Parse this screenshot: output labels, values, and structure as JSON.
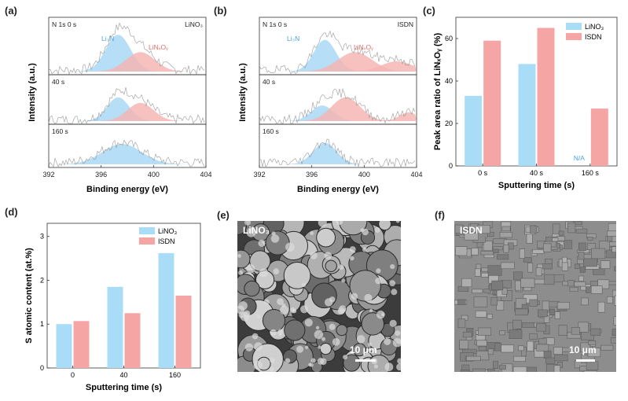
{
  "panels": {
    "a": {
      "label": "(a)",
      "corner_text": "LiNO₃",
      "subplots": [
        {
          "text": "N 1s    0 s",
          "peak1_label": "Li₃N",
          "peak2_label": "LiNₓOᵧ"
        },
        {
          "text": "40 s"
        },
        {
          "text": "160 s"
        }
      ],
      "xticks": [
        "392",
        "396",
        "400",
        "404"
      ],
      "xlabel": "Binding energy (eV)",
      "ylabel": "Intensity (a.u.)"
    },
    "b": {
      "label": "(b)",
      "corner_text": "ISDN",
      "subplots": [
        {
          "text": "N 1s    0 s",
          "peak1_label": "Li₃N",
          "peak2_label": "LiNₓOᵧ"
        },
        {
          "text": "40 s"
        },
        {
          "text": "160 s"
        }
      ],
      "xticks": [
        "392",
        "396",
        "400",
        "404"
      ],
      "xlabel": "Binding energy (eV)",
      "ylabel": "Intensity (a.u.)"
    },
    "c": {
      "label": "(c)",
      "na_text": "N/A"
    },
    "d": {
      "label": "(d)"
    },
    "e": {
      "label": "(e)",
      "overlay_text": "LiNO₃",
      "scale_text": "10 μm"
    },
    "f": {
      "label": "(f)",
      "overlay_text": "ISDN",
      "scale_text": "10 μm"
    }
  },
  "colors": {
    "blue_fill": "#a9d8f5",
    "blue_bar": "#a9dcf7",
    "red_fill": "#f5b6b3",
    "red_bar": "#f4a5a4",
    "blue_text": "#4aa3e0",
    "red_text": "#e0706b"
  },
  "chart_data": [
    {
      "type": "bar",
      "panel": "c",
      "categories": [
        "0 s",
        "40 s",
        "160 s"
      ],
      "series": [
        {
          "name": "LiNO₃",
          "values": [
            33,
            48,
            null
          ]
        },
        {
          "name": "ISDN",
          "values": [
            59,
            65,
            27
          ]
        }
      ],
      "xlabel": "Sputtering time (s)",
      "ylabel": "Peak area ratio of LiNₓOᵧ (%)",
      "ylim": [
        0,
        70
      ],
      "yticks": [
        0,
        20,
        40,
        60
      ],
      "legend": "top-right"
    },
    {
      "type": "bar",
      "panel": "d",
      "categories": [
        "0",
        "40",
        "160"
      ],
      "series": [
        {
          "name": "LiNO₃",
          "values": [
            1.0,
            1.85,
            2.62
          ]
        },
        {
          "name": "ISDN",
          "values": [
            1.07,
            1.25,
            1.65
          ]
        }
      ],
      "xlabel": "Sputtering time (s)",
      "ylabel": "S atomic content (at.%)",
      "ylim": [
        0,
        3.3
      ],
      "yticks": [
        0,
        1,
        2,
        3
      ],
      "legend": "top-right"
    }
  ]
}
